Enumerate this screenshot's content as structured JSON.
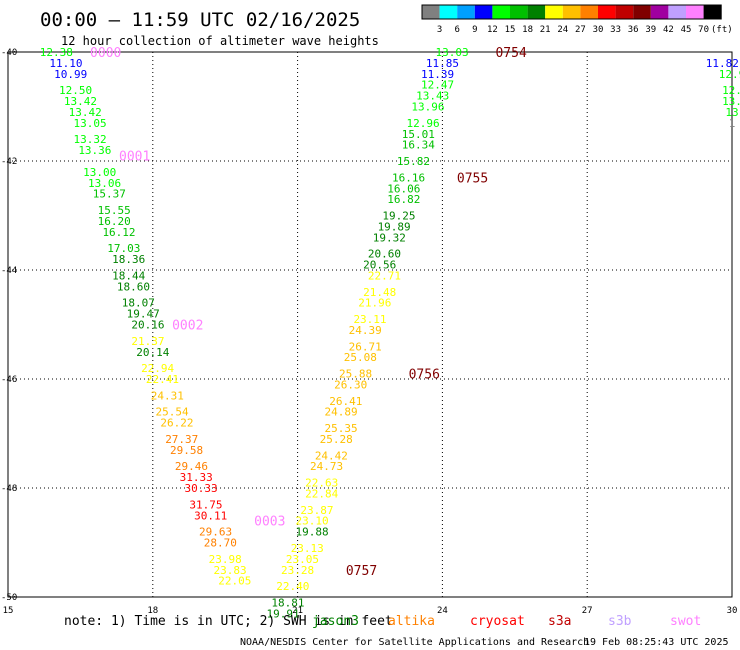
{
  "title": "00:00 – 11:59 UTC 02/16/2025",
  "subtitle": "12 hour collection of altimeter wave heights",
  "colorbar": {
    "unit": "(ft)",
    "colors": [
      "#808080",
      "#00ffff",
      "#00a0ff",
      "#0000ff",
      "#00ff00",
      "#00c000",
      "#008000",
      "#ffff00",
      "#ffc000",
      "#ff8000",
      "#ff0000",
      "#c00000",
      "#800000",
      "#a000a0",
      "#c0a0ff",
      "#ff80ff",
      "#000000"
    ],
    "labels": [
      "3",
      "6",
      "9",
      "12",
      "15",
      "18",
      "21",
      "24",
      "27",
      "30",
      "33",
      "36",
      "39",
      "42",
      "45",
      "70"
    ]
  },
  "chart_data": {
    "type": "scatter",
    "xlim": [
      15,
      30
    ],
    "ylim": [
      -50,
      -40
    ],
    "x_ticks": [
      "15",
      "18",
      "21",
      "24",
      "27",
      "30"
    ],
    "y_ticks": [
      "-40",
      "-42",
      "-44",
      "-46",
      "-48",
      "-50"
    ],
    "grid": true,
    "series": [
      {
        "name": "Pass A",
        "points": [
          {
            "x": 16.0,
            "y": -40.0,
            "v": "12.38"
          },
          {
            "x": 16.2,
            "y": -40.2,
            "v": "11.10"
          },
          {
            "x": 16.3,
            "y": -40.4,
            "v": "10.99"
          },
          {
            "x": 16.4,
            "y": -40.7,
            "v": "12.50"
          },
          {
            "x": 16.5,
            "y": -40.9,
            "v": "13.42"
          },
          {
            "x": 16.6,
            "y": -41.1,
            "v": "13.42"
          },
          {
            "x": 16.7,
            "y": -41.3,
            "v": "13.05"
          },
          {
            "x": 16.7,
            "y": -41.6,
            "v": "13.32"
          },
          {
            "x": 16.8,
            "y": -41.8,
            "v": "13.36"
          },
          {
            "x": 16.9,
            "y": -42.2,
            "v": "13.00"
          },
          {
            "x": 17.0,
            "y": -42.4,
            "v": "13.06"
          },
          {
            "x": 17.1,
            "y": -42.6,
            "v": "15.37"
          },
          {
            "x": 17.2,
            "y": -42.9,
            "v": "15.55"
          },
          {
            "x": 17.2,
            "y": -43.1,
            "v": "16.20"
          },
          {
            "x": 17.3,
            "y": -43.3,
            "v": "16.12"
          },
          {
            "x": 17.4,
            "y": -43.6,
            "v": "17.03"
          },
          {
            "x": 17.5,
            "y": -43.8,
            "v": "18.36"
          },
          {
            "x": 17.5,
            "y": -44.1,
            "v": "18.44"
          },
          {
            "x": 17.6,
            "y": -44.3,
            "v": "18.60"
          },
          {
            "x": 17.7,
            "y": -44.6,
            "v": "18.07"
          },
          {
            "x": 17.8,
            "y": -44.8,
            "v": "19.47"
          },
          {
            "x": 17.9,
            "y": -45.0,
            "v": "20.16"
          },
          {
            "x": 17.9,
            "y": -45.3,
            "v": "21.37"
          },
          {
            "x": 18.0,
            "y": -45.5,
            "v": "20.14"
          },
          {
            "x": 18.1,
            "y": -45.8,
            "v": "22.94"
          },
          {
            "x": 18.2,
            "y": -46.0,
            "v": "22.41"
          },
          {
            "x": 18.3,
            "y": -46.3,
            "v": "24.31"
          },
          {
            "x": 18.4,
            "y": -46.6,
            "v": "25.54"
          },
          {
            "x": 18.5,
            "y": -46.8,
            "v": "26.22"
          },
          {
            "x": 18.6,
            "y": -47.1,
            "v": "27.37"
          },
          {
            "x": 18.7,
            "y": -47.3,
            "v": "29.58"
          },
          {
            "x": 18.8,
            "y": -47.6,
            "v": "29.46"
          },
          {
            "x": 18.9,
            "y": -47.8,
            "v": "31.33"
          },
          {
            "x": 19.0,
            "y": -48.0,
            "v": "30.33"
          },
          {
            "x": 19.1,
            "y": -48.3,
            "v": "31.75"
          },
          {
            "x": 19.2,
            "y": -48.5,
            "v": "30.11"
          },
          {
            "x": 19.3,
            "y": -48.8,
            "v": "29.63"
          },
          {
            "x": 19.4,
            "y": -49.0,
            "v": "28.70"
          },
          {
            "x": 19.5,
            "y": -49.3,
            "v": "23.98"
          },
          {
            "x": 19.6,
            "y": -49.5,
            "v": "23.83"
          },
          {
            "x": 19.7,
            "y": -49.7,
            "v": "22.05"
          }
        ]
      },
      {
        "name": "Pass B",
        "points": [
          {
            "x": 24.2,
            "y": -40.0,
            "v": "13.03"
          },
          {
            "x": 24.0,
            "y": -40.2,
            "v": "11.85"
          },
          {
            "x": 23.9,
            "y": -40.4,
            "v": "11.39"
          },
          {
            "x": 23.9,
            "y": -40.6,
            "v": "12.47"
          },
          {
            "x": 23.8,
            "y": -40.8,
            "v": "13.43"
          },
          {
            "x": 23.7,
            "y": -41.0,
            "v": "13.96"
          },
          {
            "x": 23.6,
            "y": -41.3,
            "v": "12.96"
          },
          {
            "x": 23.5,
            "y": -41.5,
            "v": "15.01"
          },
          {
            "x": 23.5,
            "y": -41.7,
            "v": "16.34"
          },
          {
            "x": 23.4,
            "y": -42.0,
            "v": "15.82"
          },
          {
            "x": 23.3,
            "y": -42.3,
            "v": "16.16"
          },
          {
            "x": 23.2,
            "y": -42.5,
            "v": "16.06"
          },
          {
            "x": 23.2,
            "y": -42.7,
            "v": "16.82"
          },
          {
            "x": 23.1,
            "y": -43.0,
            "v": "19.25"
          },
          {
            "x": 23.0,
            "y": -43.2,
            "v": "19.89"
          },
          {
            "x": 22.9,
            "y": -43.4,
            "v": "19.32"
          },
          {
            "x": 22.8,
            "y": -43.7,
            "v": "20.60"
          },
          {
            "x": 22.7,
            "y": -43.9,
            "v": "20.56"
          },
          {
            "x": 22.8,
            "y": -44.1,
            "v": "22.71"
          },
          {
            "x": 22.7,
            "y": -44.4,
            "v": "21.48"
          },
          {
            "x": 22.6,
            "y": -44.6,
            "v": "21.96"
          },
          {
            "x": 22.5,
            "y": -44.9,
            "v": "23.11"
          },
          {
            "x": 22.4,
            "y": -45.1,
            "v": "24.39"
          },
          {
            "x": 22.4,
            "y": -45.4,
            "v": "26.71"
          },
          {
            "x": 22.3,
            "y": -45.6,
            "v": "25.08"
          },
          {
            "x": 22.2,
            "y": -45.9,
            "v": "25.88"
          },
          {
            "x": 22.1,
            "y": -46.1,
            "v": "26.30"
          },
          {
            "x": 22.0,
            "y": -46.4,
            "v": "26.41"
          },
          {
            "x": 21.9,
            "y": -46.6,
            "v": "24.89"
          },
          {
            "x": 21.9,
            "y": -46.9,
            "v": "25.35"
          },
          {
            "x": 21.8,
            "y": -47.1,
            "v": "25.28"
          },
          {
            "x": 21.7,
            "y": -47.4,
            "v": "24.42"
          },
          {
            "x": 21.6,
            "y": -47.6,
            "v": "24.73"
          },
          {
            "x": 21.5,
            "y": -47.9,
            "v": "22.63"
          },
          {
            "x": 21.5,
            "y": -48.1,
            "v": "22.84"
          },
          {
            "x": 21.4,
            "y": -48.4,
            "v": "23.87"
          },
          {
            "x": 21.3,
            "y": -48.6,
            "v": "23.10"
          },
          {
            "x": 21.3,
            "y": -48.8,
            "v": "19.88"
          },
          {
            "x": 21.2,
            "y": -49.1,
            "v": "23.13"
          },
          {
            "x": 21.1,
            "y": -49.3,
            "v": "23.05"
          },
          {
            "x": 21.0,
            "y": -49.5,
            "v": "23.28"
          },
          {
            "x": 20.9,
            "y": -49.8,
            "v": "22.40"
          },
          {
            "x": 20.8,
            "y": -50.1,
            "v": "18.81"
          },
          {
            "x": 20.7,
            "y": -50.3,
            "v": "19.91"
          }
        ]
      },
      {
        "name": "Pass C",
        "points": [
          {
            "x": 29.8,
            "y": -40.2,
            "v": "11.82"
          },
          {
            "x": 30.0,
            "y": -40.4,
            "v": "12.9"
          },
          {
            "x": 30.0,
            "y": -40.7,
            "v": "12."
          },
          {
            "x": 30.0,
            "y": -40.9,
            "v": "13."
          },
          {
            "x": 30.0,
            "y": -41.1,
            "v": "13"
          },
          {
            "x": 30.0,
            "y": -41.3,
            "v": "1"
          }
        ]
      }
    ],
    "time_labels": [
      {
        "x": 16.7,
        "y": -40.0,
        "text": "0000",
        "color": "#ff80ff"
      },
      {
        "x": 17.3,
        "y": -41.9,
        "text": "0001",
        "color": "#ff80ff"
      },
      {
        "x": 18.4,
        "y": -45.0,
        "text": "0002",
        "color": "#ff80ff"
      },
      {
        "x": 20.1,
        "y": -48.6,
        "text": "0003",
        "color": "#ff80ff"
      },
      {
        "x": 25.1,
        "y": -40.0,
        "text": "0754",
        "color": "#800000"
      },
      {
        "x": 24.3,
        "y": -42.3,
        "text": "0755",
        "color": "#800000"
      },
      {
        "x": 23.3,
        "y": -45.9,
        "text": "0756",
        "color": "#800000"
      },
      {
        "x": 22.0,
        "y": -49.5,
        "text": "0757",
        "color": "#800000"
      }
    ]
  },
  "note": "note: 1) Time is in UTC; 2) SWH is in feet",
  "satellites": [
    {
      "name": "jason3",
      "color": "#008000"
    },
    {
      "name": "altika",
      "color": "#ff8000"
    },
    {
      "name": "cryosat",
      "color": "#ff0000"
    },
    {
      "name": "s3a",
      "color": "#c00000"
    },
    {
      "name": "s3b",
      "color": "#c0a0ff"
    },
    {
      "name": "swot",
      "color": "#ff80ff"
    }
  ],
  "footer": {
    "credit": "NOAA/NESDIS Center for Satellite Applications and Research",
    "timestamp": "19 Feb 08:25:43 UTC 2025"
  }
}
